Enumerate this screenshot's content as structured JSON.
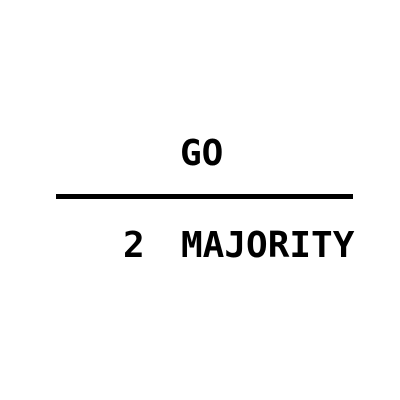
{
  "top": {
    "word": "GO"
  },
  "bottom": {
    "number": "2",
    "word": "MAJORITY"
  }
}
